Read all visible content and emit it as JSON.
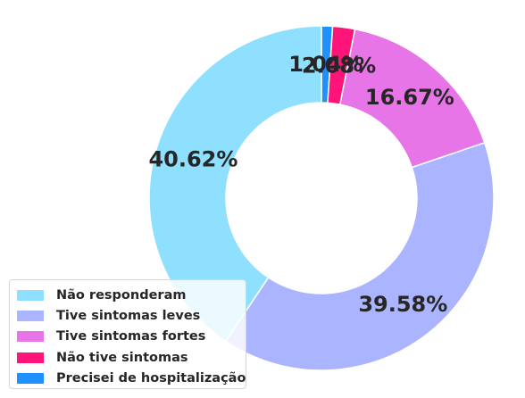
{
  "chart_data": {
    "type": "pie",
    "variant": "donut",
    "title": "",
    "slices": [
      {
        "label": "Precisei de hospitalização",
        "value": 1.04,
        "display": "1.04%",
        "color": "#1e90ff"
      },
      {
        "label": "Não tive sintomas",
        "value": 2.08,
        "display": "2.08%",
        "color": "#ff1479"
      },
      {
        "label": "Tive sintomas fortes",
        "value": 16.67,
        "display": "16.67%",
        "color": "#e875e8"
      },
      {
        "label": "Tive sintomas leves",
        "value": 39.58,
        "display": "39.58%",
        "color": "#aab4ff"
      },
      {
        "label": "Não responderam",
        "value": 40.62,
        "display": "40.62%",
        "color": "#8fe0ff"
      }
    ],
    "legend": {
      "position": "bottom-left",
      "entries": [
        {
          "label": "Não responderam",
          "color": "#8fe0ff"
        },
        {
          "label": "Tive sintomas leves",
          "color": "#aab4ff"
        },
        {
          "label": "Tive sintomas fortes",
          "color": "#e875e8"
        },
        {
          "label": "Não tive sintomas",
          "color": "#ff1479"
        },
        {
          "label": "Precisei de hospitalização",
          "color": "#1e90ff"
        }
      ]
    }
  }
}
